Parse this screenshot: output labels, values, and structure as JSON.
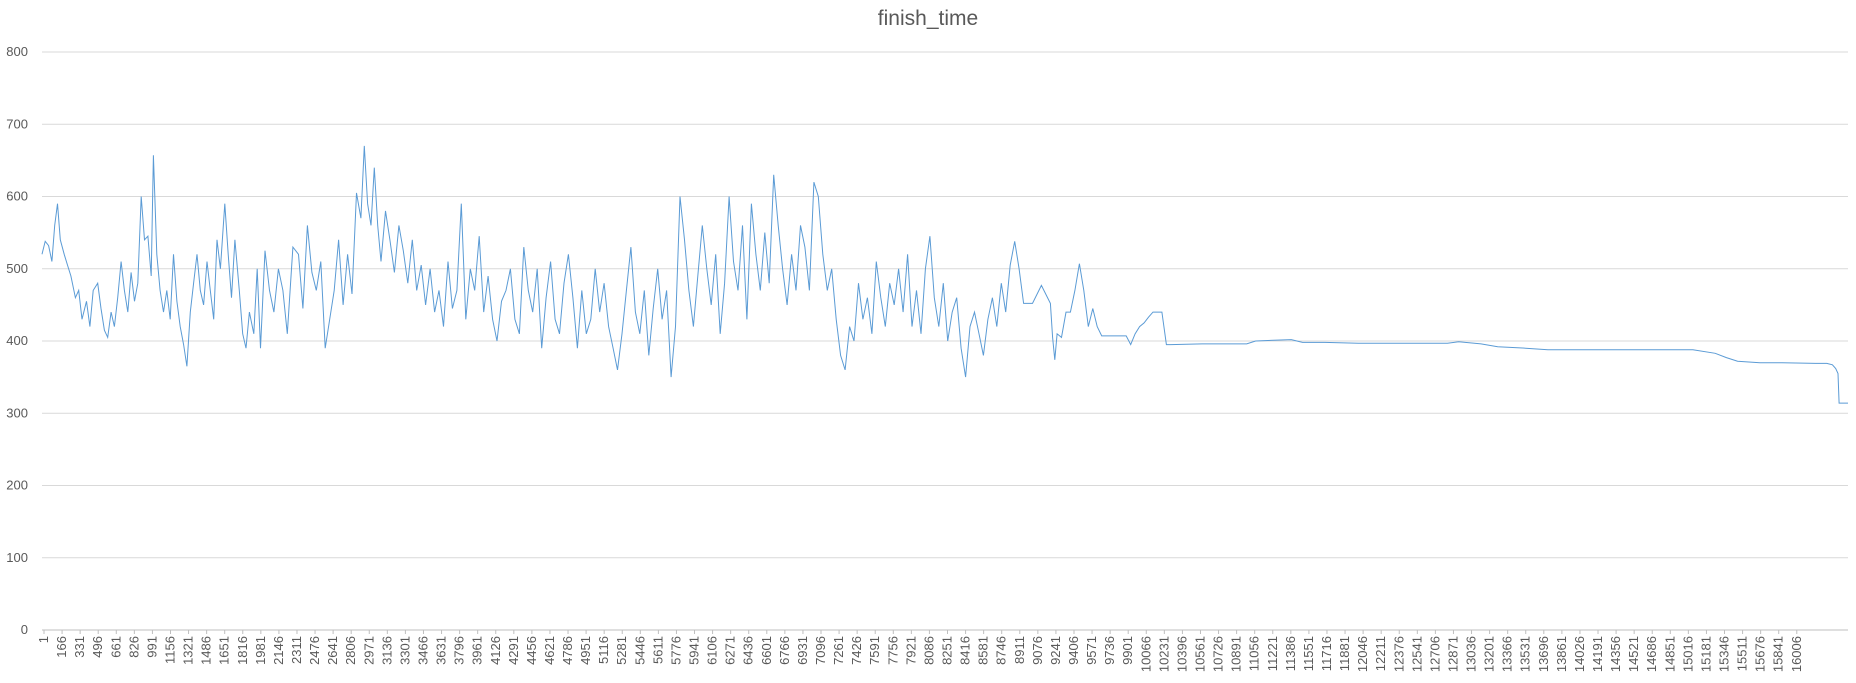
{
  "chart_data": {
    "type": "line",
    "title": "finish_time",
    "xlabel": "",
    "ylabel": "",
    "ylim": [
      0,
      800
    ],
    "yticks": [
      0,
      100,
      200,
      300,
      400,
      500,
      600,
      700,
      800
    ],
    "x_tick_labels": [
      "1",
      "166",
      "331",
      "496",
      "661",
      "826",
      "991",
      "1156",
      "1321",
      "1486",
      "1651",
      "1816",
      "1981",
      "2146",
      "2311",
      "2476",
      "2641",
      "2806",
      "2971",
      "3136",
      "3301",
      "3466",
      "3631",
      "3796",
      "3961",
      "4126",
      "4291",
      "4456",
      "4621",
      "4786",
      "4951",
      "5116",
      "5281",
      "5446",
      "5611",
      "5776",
      "5941",
      "6106",
      "6271",
      "6436",
      "6601",
      "6766",
      "6931",
      "7096",
      "7261",
      "7426",
      "7591",
      "7756",
      "7921",
      "8086",
      "8251",
      "8416",
      "8581",
      "8746",
      "8911",
      "9076",
      "9241",
      "9406",
      "9571",
      "9736",
      "9901",
      "10066",
      "10231",
      "10396",
      "10561",
      "10726",
      "10891",
      "11056",
      "11221",
      "11386",
      "11551",
      "11716",
      "11881",
      "12046",
      "12211",
      "12376",
      "12541",
      "12706",
      "12871",
      "13036",
      "13201",
      "13366",
      "13531",
      "13696",
      "13861",
      "14026",
      "14191",
      "14356",
      "14521",
      "14686",
      "14851",
      "15016",
      "15181",
      "15346",
      "15511",
      "15676",
      "15841",
      "16006"
    ],
    "xlim": [
      1,
      16190
    ],
    "grid": true,
    "legend": "none",
    "series": [
      {
        "color": "#5b9bd5",
        "points": [
          [
            1,
            520
          ],
          [
            30,
            538
          ],
          [
            60,
            532
          ],
          [
            90,
            510
          ],
          [
            115,
            560
          ],
          [
            140,
            590
          ],
          [
            165,
            540
          ],
          [
            200,
            520
          ],
          [
            230,
            505
          ],
          [
            260,
            490
          ],
          [
            300,
            460
          ],
          [
            330,
            470
          ],
          [
            360,
            430
          ],
          [
            400,
            455
          ],
          [
            430,
            420
          ],
          [
            460,
            470
          ],
          [
            500,
            480
          ],
          [
            530,
            445
          ],
          [
            560,
            415
          ],
          [
            590,
            405
          ],
          [
            620,
            440
          ],
          [
            650,
            420
          ],
          [
            680,
            460
          ],
          [
            710,
            510
          ],
          [
            740,
            470
          ],
          [
            770,
            440
          ],
          [
            800,
            495
          ],
          [
            830,
            455
          ],
          [
            860,
            480
          ],
          [
            890,
            600
          ],
          [
            920,
            540
          ],
          [
            950,
            545
          ],
          [
            980,
            490
          ],
          [
            1000,
            657
          ],
          [
            1030,
            520
          ],
          [
            1060,
            470
          ],
          [
            1090,
            440
          ],
          [
            1120,
            470
          ],
          [
            1150,
            430
          ],
          [
            1180,
            520
          ],
          [
            1210,
            455
          ],
          [
            1240,
            420
          ],
          [
            1270,
            395
          ],
          [
            1300,
            365
          ],
          [
            1330,
            440
          ],
          [
            1360,
            480
          ],
          [
            1390,
            520
          ],
          [
            1420,
            470
          ],
          [
            1450,
            450
          ],
          [
            1480,
            510
          ],
          [
            1510,
            470
          ],
          [
            1540,
            430
          ],
          [
            1570,
            540
          ],
          [
            1600,
            500
          ],
          [
            1640,
            590
          ],
          [
            1670,
            520
          ],
          [
            1700,
            460
          ],
          [
            1730,
            540
          ],
          [
            1770,
            470
          ],
          [
            1800,
            410
          ],
          [
            1830,
            390
          ],
          [
            1860,
            440
          ],
          [
            1900,
            410
          ],
          [
            1930,
            500
          ],
          [
            1960,
            390
          ],
          [
            2000,
            525
          ],
          [
            2040,
            470
          ],
          [
            2080,
            440
          ],
          [
            2120,
            500
          ],
          [
            2160,
            470
          ],
          [
            2200,
            410
          ],
          [
            2250,
            530
          ],
          [
            2300,
            520
          ],
          [
            2340,
            445
          ],
          [
            2380,
            560
          ],
          [
            2420,
            495
          ],
          [
            2460,
            470
          ],
          [
            2500,
            510
          ],
          [
            2540,
            390
          ],
          [
            2580,
            430
          ],
          [
            2620,
            470
          ],
          [
            2660,
            540
          ],
          [
            2700,
            450
          ],
          [
            2740,
            520
          ],
          [
            2780,
            465
          ],
          [
            2820,
            605
          ],
          [
            2860,
            570
          ],
          [
            2890,
            670
          ],
          [
            2920,
            590
          ],
          [
            2950,
            560
          ],
          [
            2980,
            640
          ],
          [
            3010,
            560
          ],
          [
            3040,
            510
          ],
          [
            3080,
            580
          ],
          [
            3120,
            540
          ],
          [
            3160,
            495
          ],
          [
            3200,
            560
          ],
          [
            3240,
            525
          ],
          [
            3280,
            480
          ],
          [
            3320,
            540
          ],
          [
            3360,
            470
          ],
          [
            3400,
            505
          ],
          [
            3440,
            450
          ],
          [
            3480,
            500
          ],
          [
            3520,
            440
          ],
          [
            3560,
            470
          ],
          [
            3600,
            420
          ],
          [
            3640,
            510
          ],
          [
            3680,
            445
          ],
          [
            3720,
            470
          ],
          [
            3760,
            590
          ],
          [
            3800,
            430
          ],
          [
            3840,
            500
          ],
          [
            3880,
            470
          ],
          [
            3920,
            545
          ],
          [
            3960,
            440
          ],
          [
            4000,
            490
          ],
          [
            4040,
            430
          ],
          [
            4080,
            400
          ],
          [
            4120,
            455
          ],
          [
            4160,
            470
          ],
          [
            4200,
            500
          ],
          [
            4240,
            430
          ],
          [
            4280,
            410
          ],
          [
            4320,
            530
          ],
          [
            4360,
            470
          ],
          [
            4400,
            440
          ],
          [
            4440,
            500
          ],
          [
            4480,
            390
          ],
          [
            4520,
            460
          ],
          [
            4560,
            510
          ],
          [
            4600,
            430
          ],
          [
            4640,
            410
          ],
          [
            4680,
            480
          ],
          [
            4720,
            520
          ],
          [
            4760,
            460
          ],
          [
            4800,
            390
          ],
          [
            4840,
            470
          ],
          [
            4880,
            410
          ],
          [
            4920,
            430
          ],
          [
            4960,
            500
          ],
          [
            5000,
            440
          ],
          [
            5040,
            480
          ],
          [
            5080,
            420
          ],
          [
            5120,
            390
          ],
          [
            5160,
            360
          ],
          [
            5200,
            410
          ],
          [
            5240,
            470
          ],
          [
            5280,
            530
          ],
          [
            5320,
            440
          ],
          [
            5360,
            410
          ],
          [
            5400,
            470
          ],
          [
            5440,
            380
          ],
          [
            5480,
            445
          ],
          [
            5520,
            500
          ],
          [
            5560,
            430
          ],
          [
            5600,
            470
          ],
          [
            5640,
            350
          ],
          [
            5680,
            420
          ],
          [
            5720,
            600
          ],
          [
            5760,
            540
          ],
          [
            5800,
            470
          ],
          [
            5840,
            420
          ],
          [
            5880,
            490
          ],
          [
            5920,
            560
          ],
          [
            5960,
            500
          ],
          [
            6000,
            450
          ],
          [
            6040,
            520
          ],
          [
            6080,
            410
          ],
          [
            6120,
            480
          ],
          [
            6160,
            600
          ],
          [
            6200,
            510
          ],
          [
            6240,
            470
          ],
          [
            6280,
            560
          ],
          [
            6320,
            430
          ],
          [
            6360,
            590
          ],
          [
            6400,
            520
          ],
          [
            6440,
            470
          ],
          [
            6480,
            550
          ],
          [
            6520,
            480
          ],
          [
            6560,
            630
          ],
          [
            6600,
            560
          ],
          [
            6640,
            500
          ],
          [
            6680,
            450
          ],
          [
            6720,
            520
          ],
          [
            6760,
            470
          ],
          [
            6800,
            560
          ],
          [
            6840,
            530
          ],
          [
            6880,
            470
          ],
          [
            6920,
            620
          ],
          [
            6960,
            600
          ],
          [
            7000,
            520
          ],
          [
            7040,
            470
          ],
          [
            7080,
            500
          ],
          [
            7120,
            430
          ],
          [
            7160,
            380
          ],
          [
            7200,
            360
          ],
          [
            7240,
            420
          ],
          [
            7280,
            400
          ],
          [
            7320,
            480
          ],
          [
            7360,
            430
          ],
          [
            7400,
            460
          ],
          [
            7440,
            410
          ],
          [
            7480,
            510
          ],
          [
            7520,
            460
          ],
          [
            7560,
            420
          ],
          [
            7600,
            480
          ],
          [
            7640,
            450
          ],
          [
            7680,
            500
          ],
          [
            7720,
            440
          ],
          [
            7760,
            520
          ],
          [
            7800,
            420
          ],
          [
            7840,
            470
          ],
          [
            7880,
            410
          ],
          [
            7920,
            500
          ],
          [
            7960,
            545
          ],
          [
            8000,
            460
          ],
          [
            8040,
            420
          ],
          [
            8080,
            480
          ],
          [
            8120,
            400
          ],
          [
            8160,
            440
          ],
          [
            8200,
            460
          ],
          [
            8240,
            390
          ],
          [
            8280,
            350
          ],
          [
            8320,
            420
          ],
          [
            8360,
            440
          ],
          [
            8400,
            410
          ],
          [
            8440,
            380
          ],
          [
            8480,
            430
          ],
          [
            8520,
            460
          ],
          [
            8560,
            420
          ],
          [
            8600,
            480
          ],
          [
            8640,
            440
          ],
          [
            8680,
            505
          ],
          [
            8720,
            538
          ],
          [
            8760,
            500
          ],
          [
            8800,
            452
          ],
          [
            8880,
            452
          ],
          [
            8960,
            477
          ],
          [
            9040,
            452
          ],
          [
            9060,
            405
          ],
          [
            9080,
            374
          ],
          [
            9100,
            410
          ],
          [
            9140,
            405
          ],
          [
            9180,
            440
          ],
          [
            9220,
            440
          ],
          [
            9260,
            470
          ],
          [
            9300,
            507
          ],
          [
            9340,
            470
          ],
          [
            9380,
            420
          ],
          [
            9420,
            445
          ],
          [
            9460,
            420
          ],
          [
            9500,
            407
          ],
          [
            9540,
            407
          ],
          [
            9600,
            407
          ],
          [
            9660,
            407
          ],
          [
            9720,
            407
          ],
          [
            9760,
            395
          ],
          [
            9800,
            410
          ],
          [
            9840,
            420
          ],
          [
            9880,
            425
          ],
          [
            9920,
            433
          ],
          [
            9960,
            440
          ],
          [
            10000,
            440
          ],
          [
            10040,
            440
          ],
          [
            10080,
            395
          ],
          [
            10120,
            395
          ],
          [
            10400,
            396
          ],
          [
            10800,
            396
          ],
          [
            10880,
            400
          ],
          [
            11200,
            402
          ],
          [
            11300,
            398
          ],
          [
            11500,
            398
          ],
          [
            11800,
            397
          ],
          [
            12200,
            397
          ],
          [
            12600,
            397
          ],
          [
            12700,
            399
          ],
          [
            12900,
            396
          ],
          [
            13050,
            392
          ],
          [
            13300,
            390
          ],
          [
            13500,
            388
          ],
          [
            14000,
            388
          ],
          [
            14400,
            388
          ],
          [
            14800,
            388
          ],
          [
            15000,
            383
          ],
          [
            15100,
            377
          ],
          [
            15200,
            372
          ],
          [
            15400,
            370
          ],
          [
            15600,
            370
          ],
          [
            15900,
            369
          ],
          [
            16000,
            369
          ],
          [
            16050,
            367
          ],
          [
            16080,
            362
          ],
          [
            16100,
            355
          ],
          [
            16110,
            314
          ],
          [
            16190,
            314
          ]
        ]
      }
    ]
  }
}
